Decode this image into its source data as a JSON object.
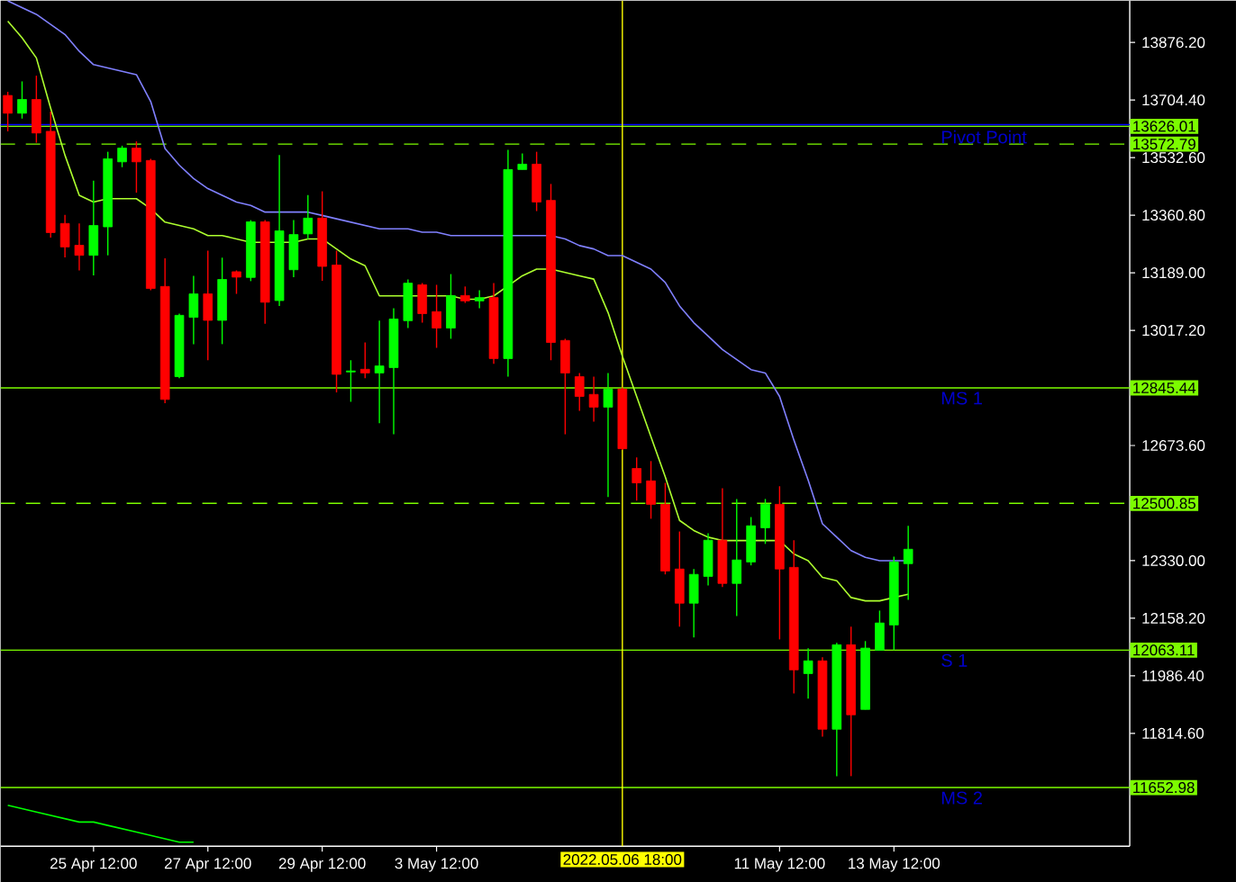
{
  "chart_data": {
    "type": "candlestick",
    "categories": [
      null,
      null,
      null,
      null,
      null,
      null,
      "25 Apr 12:00",
      null,
      null,
      null,
      null,
      null,
      null,
      null,
      "27 Apr 12:00",
      null,
      null,
      null,
      null,
      null,
      null,
      null,
      "29 Apr 12:00",
      null,
      null,
      null,
      null,
      null,
      null,
      null,
      "3 May 12:00",
      null,
      null,
      null,
      null,
      null,
      null,
      null,
      null,
      null,
      null,
      null,
      null,
      "2022.05.06 18:00",
      null,
      null,
      null,
      null,
      null,
      null,
      null,
      null,
      null,
      null,
      "11 May 12:00",
      null,
      null,
      null,
      null,
      null,
      null,
      null,
      "13 May 12:00",
      null,
      null,
      null,
      null,
      null,
      null,
      null,
      null,
      null,
      null,
      null,
      null,
      null,
      null,
      null,
      null
    ],
    "ohlc": [
      [
        13718,
        13729,
        13611,
        13665
      ],
      [
        13665,
        13760,
        13649,
        13706
      ],
      [
        13706,
        13777,
        13577,
        13606
      ],
      [
        13611,
        13670,
        13294,
        13309
      ],
      [
        13336,
        13362,
        13235,
        13266
      ],
      [
        13271,
        13336,
        13196,
        13241
      ],
      [
        13241,
        13464,
        13181,
        13330
      ],
      [
        13326,
        13550,
        13241,
        13529
      ],
      [
        13520,
        13568,
        13504,
        13561
      ],
      [
        13561,
        13581,
        13428,
        13520
      ],
      [
        13524,
        13529,
        13137,
        13142
      ],
      [
        13148,
        13232,
        12800,
        12811
      ],
      [
        12879,
        13067,
        12874,
        13062
      ],
      [
        13056,
        13180,
        12976,
        13126
      ],
      [
        13126,
        13255,
        12928,
        13047
      ],
      [
        13047,
        13234,
        12976,
        13169
      ],
      [
        13192,
        13196,
        13126,
        13176
      ],
      [
        13175,
        13346,
        13164,
        13341
      ],
      [
        13341,
        13346,
        13037,
        13101
      ],
      [
        13106,
        13540,
        13090,
        13314
      ],
      [
        13198,
        13346,
        13176,
        13303
      ],
      [
        13305,
        13421,
        13289,
        13352
      ],
      [
        13352,
        13432,
        13165,
        13208
      ],
      [
        13212,
        13255,
        12832,
        12886
      ],
      [
        12893,
        12928,
        12804,
        12896
      ],
      [
        12901,
        12981,
        12874,
        12890
      ],
      [
        12890,
        13046,
        12740,
        12911
      ],
      [
        12906,
        13083,
        12707,
        13051
      ],
      [
        13046,
        13169,
        13024,
        13158
      ],
      [
        13153,
        13158,
        13040,
        13067
      ],
      [
        13073,
        13153,
        12965,
        13024
      ],
      [
        13024,
        13185,
        12992,
        13121
      ],
      [
        13121,
        13148,
        13099,
        13105
      ],
      [
        13105,
        13137,
        13083,
        13115
      ],
      [
        13115,
        13158,
        12917,
        12933
      ],
      [
        12933,
        13556,
        12879,
        13497
      ],
      [
        13497,
        13545,
        13497,
        13513
      ],
      [
        13513,
        13550,
        13373,
        13400
      ],
      [
        13405,
        13454,
        12928,
        12981
      ],
      [
        12987,
        12992,
        12707,
        12890
      ],
      [
        12879,
        12890,
        12777,
        12820
      ],
      [
        12826,
        12879,
        12745,
        12788
      ],
      [
        12788,
        12890,
        12520,
        12842
      ],
      [
        12842,
        12847,
        12660,
        12664
      ],
      [
        12605,
        12638,
        12509,
        12562
      ],
      [
        12568,
        12627,
        12455,
        12498
      ],
      [
        12498,
        12562,
        12289,
        12299
      ],
      [
        12305,
        12417,
        12133,
        12203
      ],
      [
        12203,
        12305,
        12101,
        12289
      ],
      [
        12283,
        12412,
        12256,
        12391
      ],
      [
        12391,
        12546,
        12251,
        12262
      ],
      [
        12262,
        12514,
        12165,
        12332
      ],
      [
        12326,
        12460,
        12316,
        12434
      ],
      [
        12428,
        12514,
        12380,
        12498
      ],
      [
        12498,
        12552,
        12095,
        12305
      ],
      [
        12310,
        12391,
        11934,
        12004
      ],
      [
        11993,
        12069,
        11918,
        12031
      ],
      [
        12031,
        12042,
        11805,
        11827
      ],
      [
        11827,
        12085,
        11687,
        12079
      ],
      [
        12079,
        12133,
        11687,
        11870
      ],
      [
        11886,
        12090,
        11886,
        12069
      ],
      [
        12063,
        12181,
        12063,
        12144
      ],
      [
        12138,
        12342,
        12063,
        12326
      ],
      [
        12321,
        12434,
        12213,
        12364
      ],
      null,
      null,
      null,
      null,
      null,
      null,
      null,
      null,
      null,
      null,
      null,
      null,
      null,
      null,
      null
    ],
    "colors": [
      "#ff0000",
      "#00ff00",
      "#ff0000",
      "#ff0000",
      "#ff0000",
      "#ff0000",
      "#00ff00",
      "#00ff00",
      "#00ff00",
      "#ff0000",
      "#ff0000",
      "#ff0000",
      "#00ff00",
      "#00ff00",
      "#ff0000",
      "#00ff00",
      "#ff0000",
      "#00ff00",
      "#ff0000",
      "#00ff00",
      "#00ff00",
      "#00ff00",
      "#ff0000",
      "#ff0000",
      "#00ff00",
      "#ff0000",
      "#00ff00",
      "#00ff00",
      "#00ff00",
      "#ff0000",
      "#ff0000",
      "#00ff00",
      "#ff0000",
      "#00ff00",
      "#ff0000",
      "#00ff00",
      "#00ff00",
      "#ff0000",
      "#ff0000",
      "#ff0000",
      "#ff0000",
      "#ff0000",
      "#00ff00",
      "#ff0000",
      "#ff0000",
      "#ff0000",
      "#ff0000",
      "#ff0000",
      "#00ff00",
      "#00ff00",
      "#ff0000",
      "#00ff00",
      "#00ff00",
      "#00ff00",
      "#ff0000",
      "#ff0000",
      "#00ff00",
      "#ff0000",
      "#00ff00",
      "#ff0000",
      "#00ff00",
      "#00ff00",
      "#00ff00",
      "#00ff00",
      null,
      null,
      null,
      null,
      null,
      null,
      null,
      null,
      null,
      null,
      null,
      null,
      null,
      null,
      null
    ],
    "series": [
      {
        "type": "line",
        "color": "#8080ff",
        "values": [
          14000,
          13980,
          13960,
          13930,
          13900,
          13850,
          13810,
          13800,
          13790,
          13780,
          13700,
          13560,
          13510,
          13470,
          13440,
          13420,
          13400,
          13390,
          13370,
          13370,
          13370,
          13370,
          13360,
          13350,
          13340,
          13330,
          13320,
          13320,
          13320,
          13310,
          13310,
          13300,
          13300,
          13300,
          13300,
          13300,
          13300,
          13300,
          13300,
          13290,
          13270,
          13260,
          13240,
          13240,
          13220,
          13200,
          13160,
          13090,
          13040,
          13000,
          12960,
          12930,
          12900,
          12890,
          12820,
          12690,
          12570,
          12440,
          12400,
          12360,
          12340,
          12330,
          12330,
          12330,
          null,
          null,
          null,
          null,
          null,
          null,
          null,
          null,
          null,
          null,
          null,
          null,
          null,
          null,
          null
        ]
      },
      {
        "type": "line",
        "color": "#adff2f",
        "values": [
          13940,
          13890,
          13830,
          13680,
          13540,
          13420,
          13400,
          13410,
          13410,
          13410,
          13380,
          13340,
          13330,
          13320,
          13300,
          13300,
          13290,
          13280,
          13280,
          13280,
          13280,
          13290,
          13290,
          13260,
          13230,
          13210,
          13120,
          13120,
          13120,
          13120,
          13120,
          13120,
          13110,
          13110,
          13120,
          13150,
          13180,
          13200,
          13200,
          13190,
          13180,
          13170,
          13070,
          12940,
          12820,
          12700,
          12580,
          12450,
          12420,
          12400,
          12390,
          12390,
          12390,
          12390,
          12390,
          12350,
          12330,
          12280,
          12270,
          12220,
          12210,
          12210,
          12220,
          12230,
          null,
          null,
          null,
          null,
          null,
          null,
          null,
          null,
          null,
          null,
          null,
          null,
          null,
          null,
          null
        ]
      },
      {
        "type": "line",
        "color": "#00ff00",
        "values": [
          11600,
          11590,
          11580,
          11570,
          11560,
          11550,
          11550,
          11540,
          11530,
          11520,
          11510,
          11500,
          11490,
          11490,
          null,
          null,
          null,
          null,
          null,
          null,
          null,
          null,
          null,
          null,
          null,
          null,
          null,
          null,
          null,
          null,
          null,
          null,
          null,
          null,
          null,
          null,
          null,
          null,
          null,
          null,
          null,
          null,
          null,
          null,
          null,
          null,
          null,
          null,
          null,
          null,
          null,
          null,
          null,
          null,
          null,
          null,
          null,
          null,
          null,
          null,
          null,
          null,
          null,
          null,
          null,
          null,
          null,
          null,
          null,
          null,
          null,
          null,
          null,
          null,
          null,
          null,
          null,
          null,
          null
        ]
      }
    ],
    "ylim": [
      11478,
      14001
    ],
    "yticks": [
      {
        "value": 13876.2,
        "label": "13876.20"
      },
      {
        "value": 13704.4,
        "label": "13704.40"
      },
      {
        "value": 13532.6,
        "label": "13532.60"
      },
      {
        "value": 13360.8,
        "label": "13360.80"
      },
      {
        "value": 13189,
        "label": "13189.00"
      },
      {
        "value": 13017.2,
        "label": "13017.20"
      },
      {
        "value": 12673.6,
        "label": "12673.60"
      },
      {
        "value": 12330,
        "label": "12330.00"
      },
      {
        "value": 12158.2,
        "label": "12158.20"
      },
      {
        "value": 11986.4,
        "label": "11986.40"
      },
      {
        "value": 11814.6,
        "label": "11814.60"
      }
    ],
    "ref_lines": [
      {
        "axis": "y",
        "value": 13631,
        "color": "#0000ff"
      },
      {
        "axis": "y",
        "value": 13626.01,
        "label": "13626.01",
        "color": "#7cfc00"
      },
      {
        "axis": "y",
        "value": 13572.79,
        "label": "13572.79",
        "color": "#7cfc00",
        "line_style": "dashed"
      },
      {
        "axis": "y",
        "value": 12845.44,
        "label": "12845.44",
        "color": "#7cfc00"
      },
      {
        "axis": "y",
        "value": 12500.85,
        "label": "12500.85",
        "color": "#7cfc00",
        "line_style": "dashed"
      },
      {
        "axis": "y",
        "value": 12063.11,
        "label": "12063.11",
        "color": "#7cfc00"
      },
      {
        "axis": "y",
        "value": 11652.98,
        "label": "11652.98",
        "color": "#7cfc00"
      },
      {
        "axis": "x",
        "value": "2022.05.06 18:00",
        "color": "#ffff00"
      }
    ],
    "annotations": [
      {
        "text": "Pivot Point",
        "y": 13626.01
      },
      {
        "text": "MS 1",
        "y": 12845.44
      },
      {
        "text": "S 1",
        "y": 12063.11
      },
      {
        "text": "MS 2",
        "y": 11652.98
      }
    ]
  }
}
